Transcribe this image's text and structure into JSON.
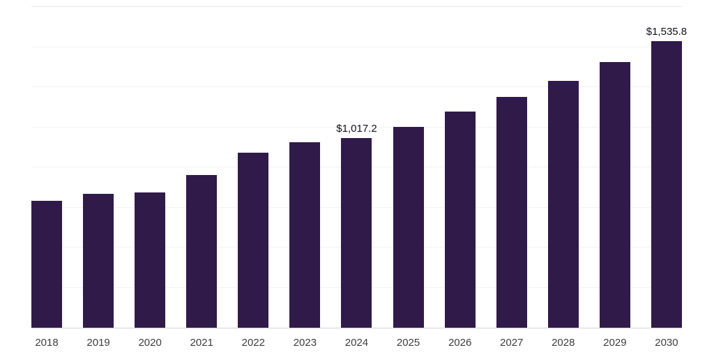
{
  "chart_data": {
    "type": "bar",
    "title": "",
    "xlabel": "",
    "ylabel": "",
    "categories": [
      "2018",
      "2019",
      "2020",
      "2021",
      "2022",
      "2023",
      "2024",
      "2025",
      "2026",
      "2027",
      "2028",
      "2029",
      "2030"
    ],
    "values": [
      679,
      719,
      727,
      820,
      938,
      994,
      1017.2,
      1076,
      1158,
      1236,
      1325,
      1426,
      1535.8
    ],
    "data_labels": [
      "",
      "",
      "",
      "",
      "",
      "",
      "$1,017.2",
      "",
      "",
      "",
      "",
      "",
      "$1,535.8"
    ],
    "ylim": [
      0,
      1720
    ],
    "grid": "horizontal-faint",
    "legend": "none",
    "bar_color": "#301a4a",
    "axis_line_color": "#d4d4d4"
  }
}
